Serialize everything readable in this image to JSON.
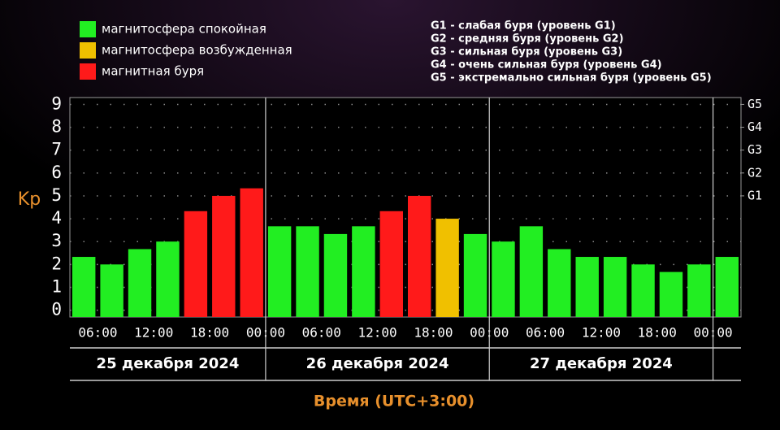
{
  "chart_data": {
    "type": "bar",
    "y_label": "Kp",
    "x_label": "Время (UTC+3:00)",
    "legend": [
      {
        "name": "магнитосфера спокойная",
        "color": "#22ee22"
      },
      {
        "name": "магнитосфера возбужденная",
        "color": "#f0c000"
      },
      {
        "name": "магнитная буря",
        "color": "#ff1a1a"
      }
    ],
    "scale_notes": [
      "G1 - слабая буря (уровень G1)",
      "G2 - средняя буря (уровень G2)",
      "G3 - сильная буря (уровень G3)",
      "G4 - очень сильная буря (уровень G4)",
      "G5 - экстремально сильная буря (уровень G5)"
    ],
    "categories": [
      null,
      null,
      null,
      null,
      null,
      null,
      null,
      null,
      null,
      null,
      null,
      null,
      null,
      null,
      null,
      null,
      null,
      null,
      null,
      null,
      null,
      null,
      null,
      null
    ],
    "values": [
      2.33,
      2.0,
      2.67,
      3.0,
      4.33,
      5.0,
      5.33,
      3.67,
      3.67,
      3.33,
      3.67,
      4.33,
      5.0,
      4.0,
      3.33,
      3.0,
      3.67,
      2.67,
      2.33,
      2.33,
      2.0,
      1.67,
      2.0,
      2.33
    ],
    "colors": [
      "#22ee22",
      "#22ee22",
      "#22ee22",
      "#22ee22",
      "#ff1a1a",
      "#ff1a1a",
      "#ff1a1a",
      "#22ee22",
      "#22ee22",
      "#22ee22",
      "#22ee22",
      "#ff1a1a",
      "#ff1a1a",
      "#f0c000",
      "#22ee22",
      "#22ee22",
      "#22ee22",
      "#22ee22",
      "#22ee22",
      "#22ee22",
      "#22ee22",
      "#22ee22",
      "#22ee22",
      "#22ee22"
    ],
    "time_labels": [
      "06:00",
      "12:00",
      "18:00",
      "00:00",
      "06:00",
      "12:00",
      "18:00",
      "00:00",
      "06:00",
      "12:00",
      "18:00",
      "00:00"
    ],
    "days": [
      "25 декабря 2024",
      "26 декабря 2024",
      "27 декабря 2024"
    ],
    "ylim": [
      -0.3,
      9.3
    ],
    "yticks": [
      0,
      1,
      2,
      3,
      4,
      5,
      6,
      7,
      8,
      9
    ],
    "y2lim": [
      -0.3,
      9.3
    ],
    "y2ticks": [
      {
        "value": 5,
        "label": "G1"
      },
      {
        "value": 6,
        "label": "G2"
      },
      {
        "value": 7,
        "label": "G3"
      },
      {
        "value": 8,
        "label": "G4"
      },
      {
        "value": 9,
        "label": "G5"
      }
    ],
    "grid": true
  }
}
